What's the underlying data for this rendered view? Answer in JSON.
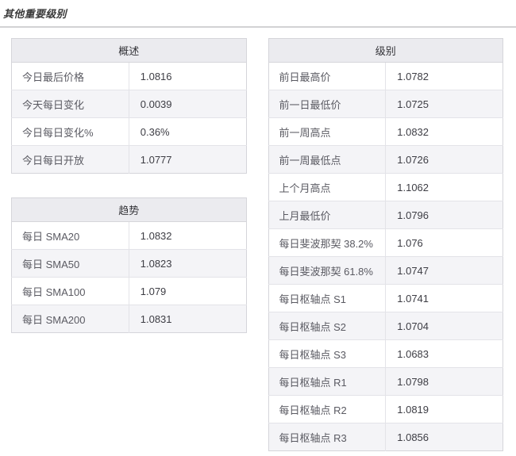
{
  "page": {
    "title": "其他重要级别"
  },
  "colors": {
    "table_header_bg": "#ebebef",
    "row_stripe_bg": "#f4f4f7",
    "table_border": "#d5d5da",
    "label_text": "#5a5a62",
    "value_text": "#3d3d44",
    "title_text": "#3a3a3a"
  },
  "tables": {
    "overview": {
      "header": "概述",
      "rows": [
        {
          "label": "今日最后价格",
          "value": "1.0816"
        },
        {
          "label": "今天每日变化",
          "value": "0.0039"
        },
        {
          "label": "今日每日变化%",
          "value": "0.36%"
        },
        {
          "label": "今日每日开放",
          "value": "1.0777"
        }
      ]
    },
    "trend": {
      "header": "趋势",
      "rows": [
        {
          "label": "每日 SMA20",
          "value": "1.0832"
        },
        {
          "label": "每日 SMA50",
          "value": "1.0823"
        },
        {
          "label": "每日 SMA100",
          "value": "1.079"
        },
        {
          "label": "每日 SMA200",
          "value": "1.0831"
        }
      ]
    },
    "levels": {
      "header": "级别",
      "rows": [
        {
          "label": "前日最高价",
          "value": "1.0782"
        },
        {
          "label": "前一日最低价",
          "value": "1.0725"
        },
        {
          "label": "前一周高点",
          "value": "1.0832"
        },
        {
          "label": "前一周最低点",
          "value": "1.0726"
        },
        {
          "label": "上个月高点",
          "value": "1.1062"
        },
        {
          "label": "上月最低价",
          "value": "1.0796"
        },
        {
          "label": "每日斐波那契 38.2%",
          "value": "1.076"
        },
        {
          "label": "每日斐波那契 61.8%",
          "value": "1.0747"
        },
        {
          "label": "每日枢轴点 S1",
          "value": "1.0741"
        },
        {
          "label": "每日枢轴点 S2",
          "value": "1.0704"
        },
        {
          "label": "每日枢轴点 S3",
          "value": "1.0683"
        },
        {
          "label": "每日枢轴点 R1",
          "value": "1.0798"
        },
        {
          "label": "每日枢轴点 R2",
          "value": "1.0819"
        },
        {
          "label": "每日枢轴点 R3",
          "value": "1.0856"
        }
      ]
    }
  }
}
